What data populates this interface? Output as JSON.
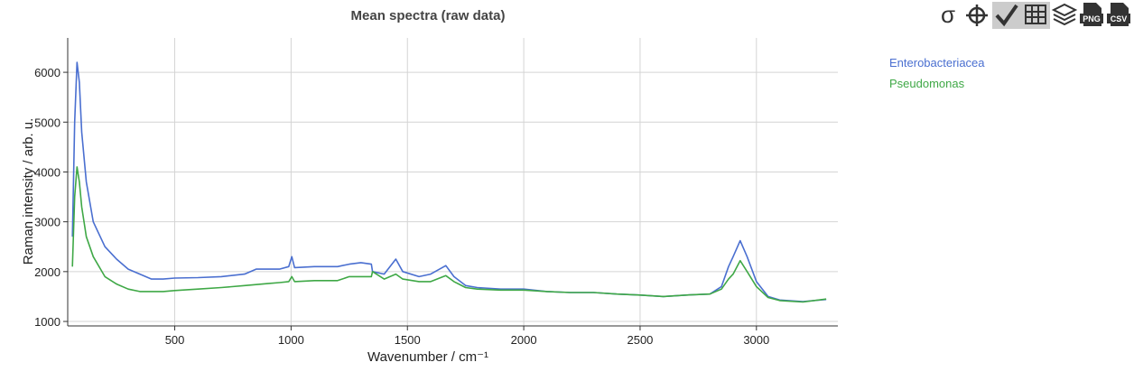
{
  "chart_data": {
    "type": "line",
    "title": "Mean spectra (raw data)",
    "xlabel": "Wavenumber / cm⁻¹",
    "ylabel": "Raman intensity / arb. u.",
    "x": [
      60,
      70,
      80,
      90,
      100,
      120,
      150,
      200,
      250,
      300,
      350,
      400,
      450,
      500,
      600,
      700,
      800,
      850,
      900,
      950,
      990,
      1003,
      1015,
      1100,
      1200,
      1250,
      1300,
      1345,
      1350,
      1400,
      1450,
      1480,
      1550,
      1600,
      1665,
      1700,
      1750,
      1800,
      1900,
      2000,
      2100,
      2200,
      2300,
      2400,
      2500,
      2600,
      2700,
      2800,
      2850,
      2880,
      2900,
      2930,
      2960,
      3000,
      3050,
      3100,
      3200,
      3300
    ],
    "series": [
      {
        "name": "Enterobacteriacea",
        "color": "#4a6fd0",
        "values": [
          2700,
          5000,
          6200,
          5800,
          4800,
          3800,
          3000,
          2500,
          2250,
          2050,
          1950,
          1850,
          1850,
          1870,
          1880,
          1900,
          1950,
          2050,
          2050,
          2050,
          2100,
          2300,
          2080,
          2100,
          2100,
          2150,
          2180,
          2150,
          2000,
          1950,
          2250,
          2000,
          1900,
          1950,
          2120,
          1900,
          1720,
          1680,
          1650,
          1650,
          1600,
          1580,
          1580,
          1550,
          1530,
          1500,
          1530,
          1550,
          1700,
          2100,
          2300,
          2620,
          2300,
          1800,
          1500,
          1430,
          1400,
          1440
        ]
      },
      {
        "name": "Pseudomonas",
        "color": "#3fa846",
        "values": [
          2100,
          3500,
          4100,
          3800,
          3300,
          2700,
          2300,
          1900,
          1750,
          1650,
          1600,
          1600,
          1600,
          1620,
          1650,
          1680,
          1720,
          1740,
          1760,
          1780,
          1800,
          1900,
          1800,
          1820,
          1820,
          1900,
          1900,
          1900,
          2000,
          1850,
          1950,
          1850,
          1800,
          1800,
          1920,
          1800,
          1680,
          1650,
          1630,
          1630,
          1600,
          1580,
          1580,
          1550,
          1530,
          1500,
          1530,
          1550,
          1650,
          1850,
          1950,
          2220,
          2000,
          1700,
          1480,
          1420,
          1390,
          1450
        ]
      }
    ],
    "xlim": [
      40,
      3350
    ],
    "xticks": [
      500,
      1000,
      1500,
      2000,
      2500,
      3000
    ],
    "ylim": [
      910,
      6690
    ],
    "yticks": [
      1000,
      2000,
      3000,
      4000,
      5000,
      6000
    ],
    "grid": true,
    "legend": "right"
  },
  "toolbar": {
    "stats": "σ",
    "png": "PNG",
    "csv": "CSV"
  }
}
